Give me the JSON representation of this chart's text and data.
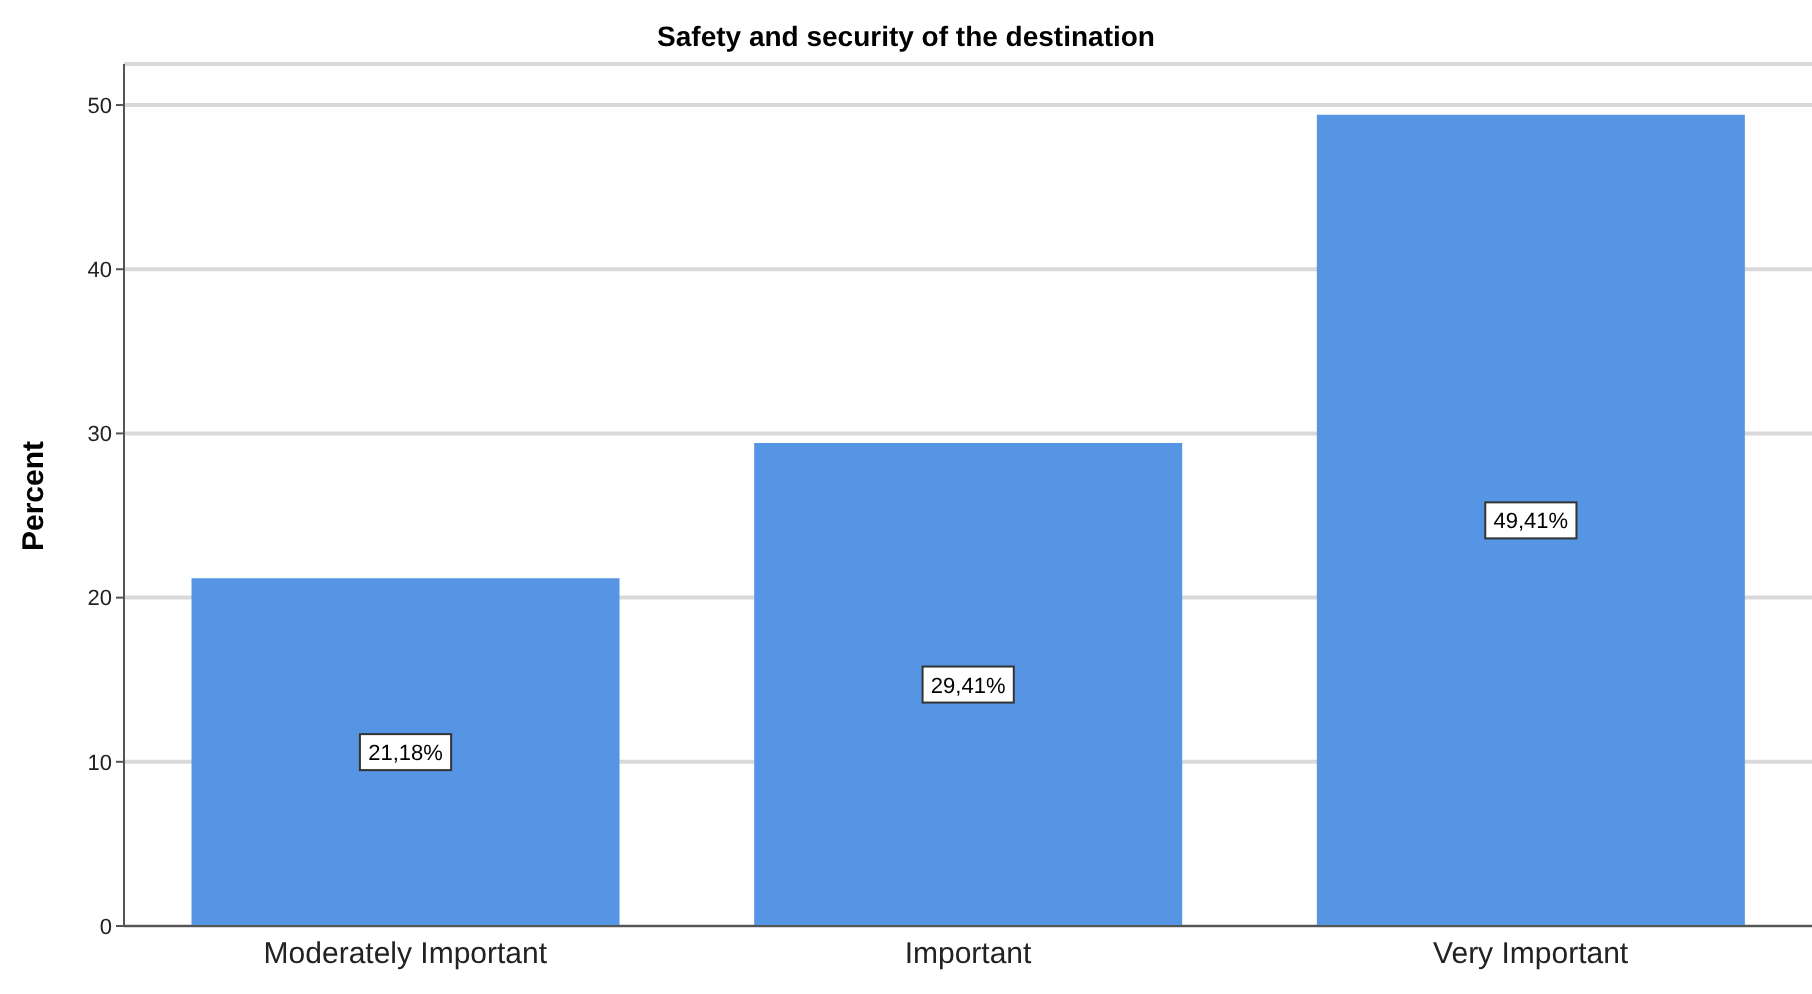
{
  "chart_data": {
    "type": "bar",
    "title": "Safety and security of the destination",
    "ylabel": "Percent",
    "categories": [
      "Moderately Important",
      "Important",
      "Very Important"
    ],
    "values": [
      21.18,
      29.41,
      49.41
    ],
    "value_labels": [
      "21,18%",
      "29,41%",
      "49,41%"
    ],
    "color": "#5595e3",
    "ylim": [
      0,
      52.5
    ],
    "yticks": [
      0,
      10,
      20,
      30,
      40,
      50
    ],
    "grid": "y"
  }
}
